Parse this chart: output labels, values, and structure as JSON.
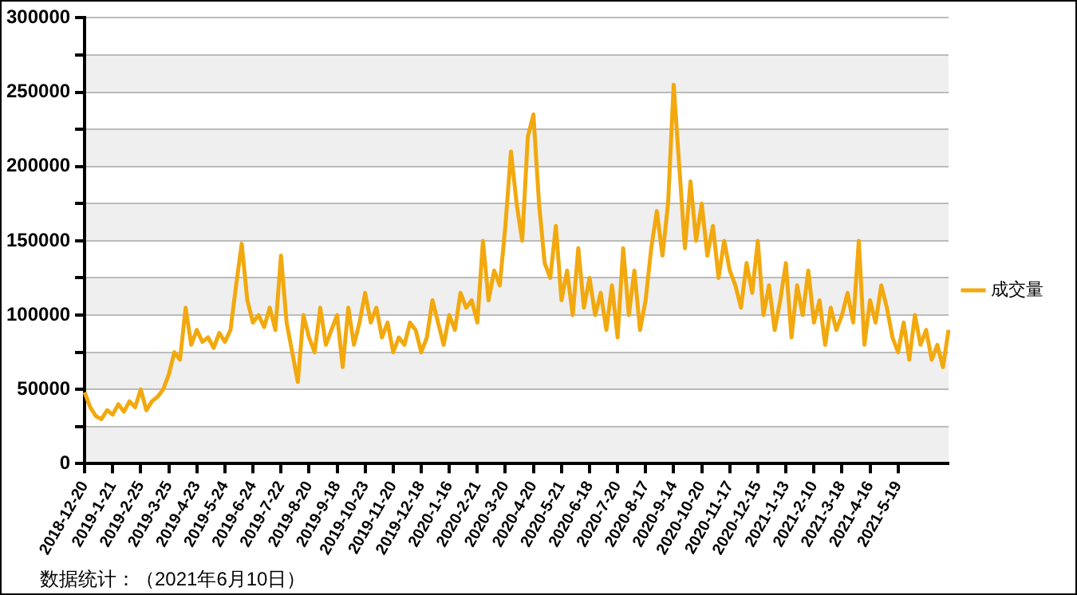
{
  "chart_data": {
    "type": "line",
    "categories": [
      "2018-12-20",
      null,
      null,
      null,
      null,
      "2019-1-21",
      null,
      null,
      null,
      null,
      "2019-2-25",
      null,
      null,
      null,
      null,
      "2019-3-25",
      null,
      null,
      null,
      null,
      "2019-4-23",
      null,
      null,
      null,
      null,
      "2019-5-24",
      null,
      null,
      null,
      null,
      "2019-6-24",
      null,
      null,
      null,
      null,
      "2019-7-22",
      null,
      null,
      null,
      null,
      "2019-8-20",
      null,
      null,
      null,
      null,
      "2019-9-18",
      null,
      null,
      null,
      null,
      "2019-10-23",
      null,
      null,
      null,
      null,
      "2019-11-20",
      null,
      null,
      null,
      null,
      "2019-12-18",
      null,
      null,
      null,
      null,
      "2020-1-16",
      null,
      null,
      null,
      null,
      "2020-2-21",
      null,
      null,
      null,
      null,
      "2020-3-20",
      null,
      null,
      null,
      null,
      "2020-4-20",
      null,
      null,
      null,
      null,
      "2020-5-21",
      null,
      null,
      null,
      null,
      "2020-6-18",
      null,
      null,
      null,
      null,
      "2020-7-20",
      null,
      null,
      null,
      null,
      "2020-8-17",
      null,
      null,
      null,
      null,
      "2020-9-14",
      null,
      null,
      null,
      null,
      "2020-10-20",
      null,
      null,
      null,
      null,
      "2020-11-17",
      null,
      null,
      null,
      null,
      "2020-12-15",
      null,
      null,
      null,
      null,
      "2021-1-13",
      null,
      null,
      null,
      null,
      "2021-2-10",
      null,
      null,
      null,
      null,
      "2021-3-18",
      null,
      null,
      null,
      null,
      "2021-4-16",
      null,
      null,
      null,
      null,
      "2021-5-19",
      null,
      null,
      null,
      null,
      null,
      null,
      null,
      null,
      null
    ],
    "series": [
      {
        "name": "成交量",
        "color": "#f2a90f",
        "values": [
          48000,
          38000,
          32000,
          30000,
          36000,
          33000,
          40000,
          35000,
          42000,
          38000,
          50000,
          36000,
          42000,
          45000,
          50000,
          60000,
          75000,
          70000,
          105000,
          80000,
          90000,
          82000,
          85000,
          78000,
          88000,
          82000,
          90000,
          120000,
          148000,
          110000,
          95000,
          100000,
          92000,
          105000,
          90000,
          140000,
          95000,
          75000,
          55000,
          100000,
          85000,
          75000,
          105000,
          80000,
          90000,
          100000,
          65000,
          105000,
          80000,
          95000,
          115000,
          95000,
          105000,
          85000,
          95000,
          75000,
          85000,
          80000,
          95000,
          90000,
          75000,
          85000,
          110000,
          95000,
          80000,
          100000,
          90000,
          115000,
          105000,
          110000,
          95000,
          150000,
          110000,
          130000,
          120000,
          160000,
          210000,
          175000,
          150000,
          220000,
          235000,
          175000,
          135000,
          125000,
          160000,
          110000,
          130000,
          100000,
          145000,
          105000,
          125000,
          100000,
          115000,
          90000,
          120000,
          85000,
          145000,
          100000,
          130000,
          90000,
          110000,
          145000,
          170000,
          140000,
          175000,
          255000,
          200000,
          145000,
          190000,
          150000,
          175000,
          140000,
          160000,
          125000,
          150000,
          130000,
          120000,
          105000,
          135000,
          115000,
          150000,
          100000,
          120000,
          90000,
          110000,
          135000,
          85000,
          120000,
          100000,
          130000,
          95000,
          110000,
          80000,
          105000,
          90000,
          100000,
          115000,
          95000,
          150000,
          80000,
          110000,
          95000,
          120000,
          105000,
          85000,
          75000,
          95000,
          70000,
          100000,
          80000,
          90000,
          70000,
          80000,
          65000,
          90000
        ]
      }
    ],
    "ylim": [
      0,
      300000
    ],
    "yticks": [
      0,
      {
        "value": 25000,
        "label": null
      },
      50000,
      {
        "value": 75000,
        "label": null
      },
      100000,
      {
        "value": 125000,
        "label": null
      },
      150000,
      {
        "value": 175000,
        "label": null
      },
      200000,
      {
        "value": 225000,
        "label": null
      },
      250000,
      {
        "value": 275000,
        "label": null
      },
      300000
    ],
    "grid": "y",
    "legend": "right",
    "marker": "none",
    "line_style": "solid",
    "annotations": [
      "数据统计：（2021年6月10日）"
    ]
  }
}
